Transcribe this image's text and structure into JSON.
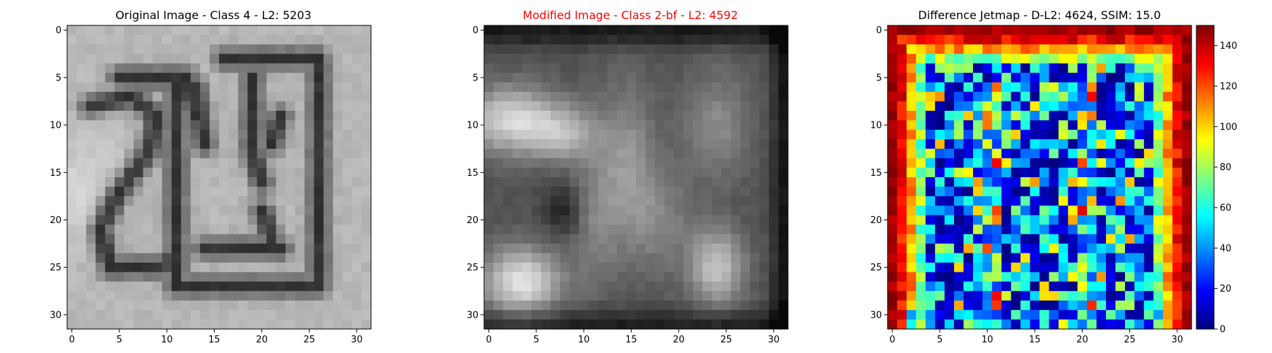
{
  "figure": {
    "panels": [
      {
        "title": "Original Image - Class 4 - L2: 5203",
        "title_color": "#000000"
      },
      {
        "title": "Modified Image - Class 2-bf - L2: 4592",
        "title_color": "#ff0000"
      },
      {
        "title": "Difference Jetmap - D-L2: 4624, SSIM: 15.0",
        "title_color": "#000000"
      }
    ],
    "colorbar": {
      "colormap": "jet",
      "range": [
        0,
        150
      ],
      "ticks": [
        "0",
        "20",
        "40",
        "60",
        "80",
        "100",
        "120",
        "140"
      ]
    }
  },
  "chart_data": [
    {
      "type": "heatmap",
      "title": "Original Image - Class 4 - L2: 5203",
      "colormap": "gray",
      "image_size": [
        32,
        32
      ],
      "xlim": [
        -0.5,
        31.5
      ],
      "ylim": [
        31.5,
        -0.5
      ],
      "xticks": [
        "0",
        "5",
        "10",
        "15",
        "20",
        "25",
        "30"
      ],
      "yticks": [
        "0",
        "5",
        "10",
        "15",
        "20",
        "25",
        "30"
      ]
    },
    {
      "type": "heatmap",
      "title": "Modified Image - Class 2-bf - L2: 4592",
      "colormap": "gray",
      "image_size": [
        32,
        32
      ],
      "xlim": [
        -0.5,
        31.5
      ],
      "ylim": [
        31.5,
        -0.5
      ],
      "xticks": [
        "0",
        "5",
        "10",
        "15",
        "20",
        "25",
        "30"
      ],
      "yticks": [
        "0",
        "5",
        "10",
        "15",
        "20",
        "25",
        "30"
      ]
    },
    {
      "type": "heatmap",
      "title": "Difference Jetmap - D-L2: 4624, SSIM: 15.0",
      "colormap": "jet",
      "image_size": [
        32,
        32
      ],
      "value_range": [
        0,
        150
      ],
      "xlim": [
        -0.5,
        31.5
      ],
      "ylim": [
        31.5,
        -0.5
      ],
      "xticks": [
        "0",
        "5",
        "10",
        "15",
        "20",
        "25",
        "30"
      ],
      "yticks": [
        "0",
        "5",
        "10",
        "15",
        "20",
        "25",
        "30"
      ]
    }
  ]
}
